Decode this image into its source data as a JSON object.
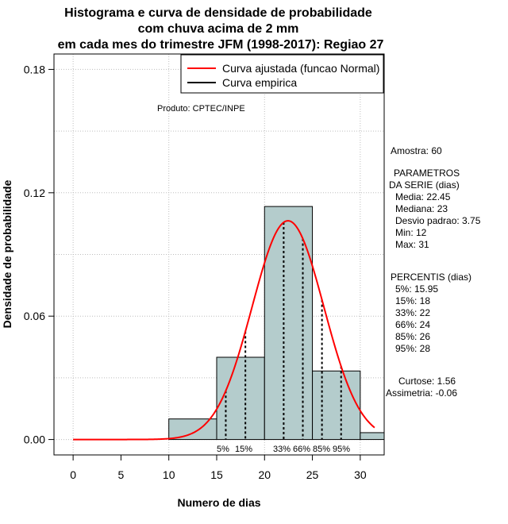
{
  "chart_data": {
    "type": "bar",
    "title": [
      "Histograma e curva de densidade de probabilidade",
      "com chuva acima de 2 mm",
      "em cada mes do trimestre JFM (1998-2017): Regiao 27"
    ],
    "xlabel": "Numero de dias",
    "ylabel": "Densidade de probabilidade",
    "xlim": [
      -2,
      32.5
    ],
    "ylim": [
      -0.0075,
      0.1875
    ],
    "xticks": [
      0,
      5,
      10,
      15,
      20,
      25,
      30
    ],
    "yticks": [
      0.0,
      0.06,
      0.12,
      0.18
    ],
    "ytick_labels": [
      "0.00",
      "0.06",
      "0.12",
      "0.18"
    ],
    "grid": true,
    "bins": [
      {
        "from": 10,
        "to": 15,
        "density": 0.01
      },
      {
        "from": 15,
        "to": 20,
        "density": 0.04
      },
      {
        "from": 20,
        "to": 25,
        "density": 0.11333
      },
      {
        "from": 25,
        "to": 30,
        "density": 0.03333
      },
      {
        "from": 30,
        "to": 32.5,
        "density": 0.00333
      }
    ],
    "bar_color": "#b4cccc",
    "normal_fit": {
      "mean": 22.45,
      "sd": 3.75,
      "x_from": 0,
      "x_to": 31.5,
      "color": "#ff0000"
    },
    "percentile_lines": [
      {
        "x": 15.95,
        "label": "5%"
      },
      {
        "x": 18,
        "label": "15%"
      },
      {
        "x": 22,
        "label": "33%"
      },
      {
        "x": 24,
        "label": "66%"
      },
      {
        "x": 26,
        "label": "85%"
      },
      {
        "x": 28,
        "label": "95%"
      }
    ],
    "legend": {
      "position": "top-right",
      "entries": [
        {
          "label": "Curva ajustada (funcao Normal)",
          "color": "#ff0000"
        },
        {
          "label": "Curva empirica",
          "color": "#000000"
        }
      ]
    },
    "annotation": "Produto: CPTEC/INPE"
  },
  "stats": {
    "amostra": "Amostra: 60",
    "param_title_1": "PARAMETROS",
    "param_title_2": "DA SERIE (dias)",
    "media": "Media: 22.45",
    "mediana": "Mediana: 23",
    "desvio": "Desvio padrao: 3.75",
    "min": "Min: 12",
    "max": "Max: 31",
    "percentis_title": "PERCENTIS (dias)",
    "p5": "5%: 15.95",
    "p15": "15%: 18",
    "p33": "33%: 22",
    "p66": "66%: 24",
    "p85": "85%: 26",
    "p95": "95%: 28",
    "curtose": "Curtose: 1.56",
    "assimetria": "Assimetria: -0.06"
  }
}
